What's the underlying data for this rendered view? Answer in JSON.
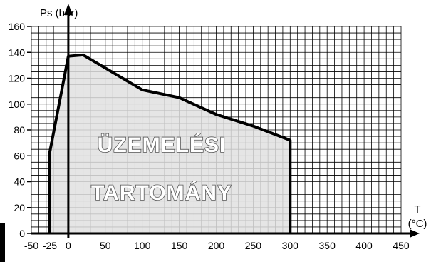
{
  "chart_data": {
    "type": "area",
    "xlabel": "T",
    "xlabel_unit": "(°C)",
    "ylabel": "Ps (bar)",
    "xlim": [
      -50,
      450
    ],
    "ylim": [
      0,
      160
    ],
    "x_ticks": [
      -50,
      -25,
      0,
      50,
      100,
      150,
      200,
      250,
      300,
      350,
      400,
      450
    ],
    "y_ticks": [
      0,
      20,
      40,
      60,
      80,
      100,
      120,
      140,
      160
    ],
    "x_minor_step": 10,
    "y_minor_step": 5,
    "grid": true,
    "fill_color": "#e0e0e0",
    "line_color": "#000000",
    "region_label_lines": [
      "ÜZEMELÉSI",
      "TARTOMÁNY"
    ],
    "boundary": {
      "x": [
        -25,
        -25,
        0,
        20,
        100,
        150,
        200,
        250,
        300,
        300
      ],
      "y": [
        0,
        63,
        137,
        138,
        111,
        105,
        92,
        83,
        72,
        0
      ]
    }
  }
}
